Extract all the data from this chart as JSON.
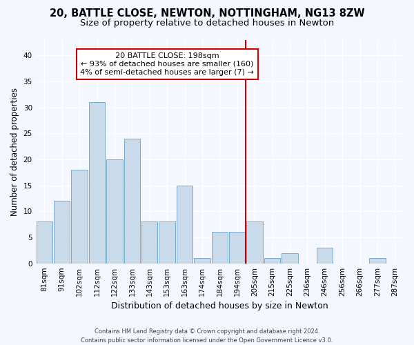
{
  "title1": "20, BATTLE CLOSE, NEWTON, NOTTINGHAM, NG13 8ZW",
  "title2": "Size of property relative to detached houses in Newton",
  "xlabel": "Distribution of detached houses by size in Newton",
  "ylabel": "Number of detached properties",
  "footnote": "Contains HM Land Registry data © Crown copyright and database right 2024.\nContains public sector information licensed under the Open Government Licence v3.0.",
  "categories": [
    "81sqm",
    "91sqm",
    "102sqm",
    "112sqm",
    "122sqm",
    "133sqm",
    "143sqm",
    "153sqm",
    "163sqm",
    "174sqm",
    "184sqm",
    "194sqm",
    "205sqm",
    "215sqm",
    "225sqm",
    "236sqm",
    "246sqm",
    "256sqm",
    "266sqm",
    "277sqm",
    "287sqm"
  ],
  "values": [
    8,
    12,
    18,
    31,
    20,
    24,
    8,
    8,
    15,
    1,
    6,
    6,
    8,
    1,
    2,
    0,
    3,
    0,
    0,
    1,
    0
  ],
  "bar_color": "#c9daea",
  "bar_edge_color": "#7aaac8",
  "vline_color": "#cc0000",
  "annotation_text": "20 BATTLE CLOSE: 198sqm\n← 93% of detached houses are smaller (160)\n4% of semi-detached houses are larger (7) →",
  "annotation_box_color": "#cc0000",
  "ylim": [
    0,
    43
  ],
  "yticks": [
    0,
    5,
    10,
    15,
    20,
    25,
    30,
    35,
    40
  ],
  "background_color": "#f5f7ff",
  "grid_color": "#ffffff",
  "title_fontsize": 10.5,
  "subtitle_fontsize": 9.5,
  "tick_fontsize": 7.5,
  "ylabel_fontsize": 8.5,
  "xlabel_fontsize": 9
}
